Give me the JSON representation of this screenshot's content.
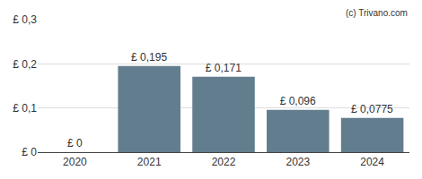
{
  "chart_data": {
    "type": "bar",
    "categories": [
      "2020",
      "2021",
      "2022",
      "2023",
      "2024"
    ],
    "values": [
      0,
      0.195,
      0.171,
      0.096,
      0.0775
    ],
    "value_labels": [
      "£ 0",
      "£ 0,195",
      "£ 0,171",
      "£ 0,096",
      "£ 0,0775"
    ],
    "data_labels": true,
    "color": "#627d8e",
    "ylim": [
      0,
      0.3
    ],
    "yticks": [
      {
        "value": 0,
        "label": "£ 0"
      },
      {
        "value": 0.1,
        "label": "£ 0,1"
      },
      {
        "value": 0.2,
        "label": "£ 0,2"
      },
      {
        "value": 0.3,
        "label": "£ 0,3"
      }
    ],
    "grid": true,
    "annotations": [
      "(c) Trivano.com"
    ]
  }
}
